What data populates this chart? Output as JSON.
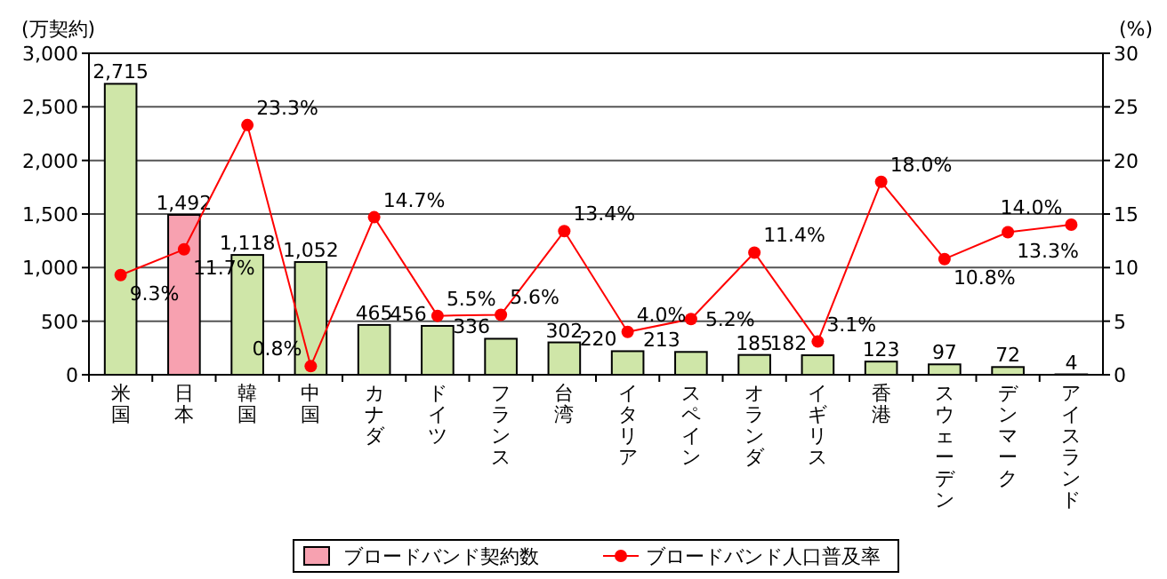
{
  "chart_data": {
    "type": "bar",
    "ylabel": "(万契約)",
    "y2label": "(%)",
    "categories": [
      "米国",
      "日本",
      "韓国",
      "中国",
      "カナダ",
      "ドイツ",
      "フランス",
      "台湾",
      "イタリア",
      "スペイン",
      "オランダ",
      "イギリス",
      "香港",
      "スウェーデン",
      "デンマーク",
      "アイスランド"
    ],
    "series": [
      {
        "name": "ブロードバンド契約数",
        "color": "#f7a1b0",
        "colors": [
          "#cfe6a8",
          "#f7a1b0",
          "#cfe6a8",
          "#cfe6a8",
          "#cfe6a8",
          "#cfe6a8",
          "#cfe6a8",
          "#cfe6a8",
          "#cfe6a8",
          "#cfe6a8",
          "#cfe6a8",
          "#cfe6a8",
          "#cfe6a8",
          "#cfe6a8",
          "#cfe6a8",
          "#cfe6a8"
        ],
        "values": [
          2715,
          1492,
          1118,
          1052,
          465,
          456,
          336,
          302,
          220,
          213,
          185,
          182,
          123,
          97,
          72,
          4
        ],
        "value_labels": [
          "2,715",
          "1,492",
          "1,118",
          "1,052",
          "465",
          "456",
          "336",
          "302",
          "220",
          "213",
          "185",
          "182",
          "123",
          "97",
          "72",
          "4"
        ]
      },
      {
        "name": "ブロードバンド人口普及率",
        "type": "line",
        "axis": "y2",
        "color": "#ff0000",
        "marker": "circle",
        "values": [
          9.3,
          11.7,
          23.3,
          0.8,
          14.7,
          5.5,
          5.6,
          13.4,
          4.0,
          5.2,
          11.4,
          3.1,
          18.0,
          10.8,
          13.3,
          14.0
        ],
        "value_labels": [
          "9.3%",
          "11.7%",
          "23.3%",
          "0.8%",
          "14.7%",
          "5.5%",
          "5.6%",
          "13.4%",
          "4.0%",
          "5.2%",
          "11.4%",
          "3.1%",
          "18.0%",
          "10.8%",
          "13.3%",
          "14.0%"
        ]
      }
    ],
    "ylim": [
      0,
      3000
    ],
    "yticks": [
      {
        "value": 0,
        "label": "0"
      },
      {
        "value": 500,
        "label": "500"
      },
      {
        "value": 1000,
        "label": "1,000"
      },
      {
        "value": 1500,
        "label": "1,500"
      },
      {
        "value": 2000,
        "label": "2,000"
      },
      {
        "value": 2500,
        "label": "2,500"
      },
      {
        "value": 3000,
        "label": "3,000"
      }
    ],
    "y2lim": [
      0,
      30
    ],
    "y2ticks": [
      0,
      5,
      10,
      15,
      20,
      25,
      30
    ],
    "grid": "y",
    "legend": "bottom"
  }
}
